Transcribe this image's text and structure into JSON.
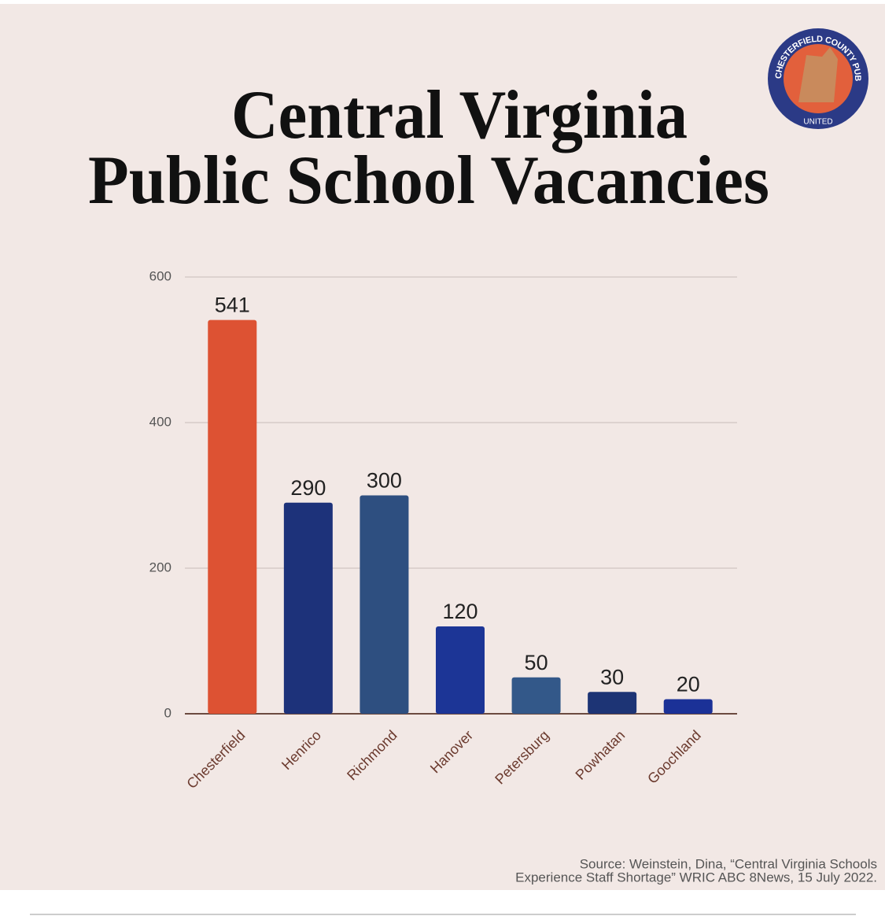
{
  "logo": {
    "ring_text": "CHESTERFIELD COUNTY PUBLIC SCHOOLS",
    "bottom_text": "UNITED"
  },
  "chart_data": {
    "type": "bar",
    "title_lines": [
      "Central Virginia",
      "Public School Vacancies"
    ],
    "categories": [
      "Chesterfield",
      "Henrico",
      "Richmond",
      "Hanover",
      "Petersburg",
      "Powhatan",
      "Goochland"
    ],
    "values": [
      541,
      290,
      300,
      120,
      50,
      30,
      20
    ],
    "colors": [
      "#dd5233",
      "#1d327a",
      "#2e4f80",
      "#1c3596",
      "#335889",
      "#1d3475",
      "#1b3197"
    ],
    "ylim": [
      0,
      600
    ],
    "yticks": [
      0,
      200,
      400,
      600
    ],
    "grid": true,
    "source_lines": [
      "Source: Weinstein, Dina, “Central Virginia Schools",
      "Experience Staff Shortage” WRIC ABC 8News, 15 July 2022."
    ]
  }
}
